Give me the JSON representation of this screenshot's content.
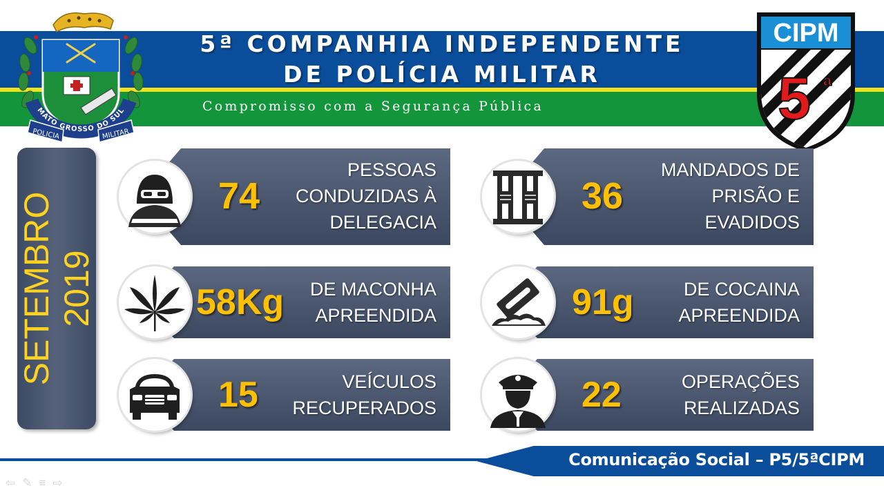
{
  "header": {
    "title_line1": "5ª COMPANHIA INDEPENDENTE",
    "title_line2": "DE POLÍCIA MILITAR",
    "motto": "Compromisso com a Segurança Pública"
  },
  "crest": {
    "ring_text": "MATO GROSSO DO SUL",
    "ribbon_left": "POLICIA",
    "ribbon_right": "MILITAR"
  },
  "badge": {
    "label": "CIPM",
    "number": "5",
    "ordinal": "ª"
  },
  "period": {
    "month": "SETEMBRO",
    "year": "2019"
  },
  "stats": [
    {
      "icon": "masked-person-icon",
      "value": "74",
      "label_lines": [
        "PESSOAS",
        "CONDUZIDAS À",
        "DELEGACIA"
      ]
    },
    {
      "icon": "prison-bars-icon",
      "value": "36",
      "label_lines": [
        "MANDADOS DE",
        "PRISÃO E",
        "EVADIDOS"
      ]
    },
    {
      "icon": "cannabis-leaf-icon",
      "value": "58Kg",
      "label_lines": [
        "DE MACONHA",
        "APREENDIDA"
      ]
    },
    {
      "icon": "razor-blade-icon",
      "value": "91g",
      "label_lines": [
        "DE COCAINA",
        "APREENDIDA"
      ]
    },
    {
      "icon": "car-front-icon",
      "value": "15",
      "label_lines": [
        "VEÍCULOS",
        "RECUPERADOS"
      ]
    },
    {
      "icon": "police-officer-icon",
      "value": "22",
      "label_lines": [
        "OPERAÇÕES",
        "REALIZADAS"
      ]
    }
  ],
  "footer": {
    "text": "Comunicação Social – P5/5ªCIPM"
  },
  "nav": {
    "prev": "⇦",
    "pen": "✎",
    "menu": "≡",
    "next": "⇨"
  },
  "colors": {
    "blue": "#0a4d9a",
    "yellow": "#f2e21a",
    "green": "#13953c",
    "gold": "#ffc000",
    "card": "#4a566e"
  }
}
